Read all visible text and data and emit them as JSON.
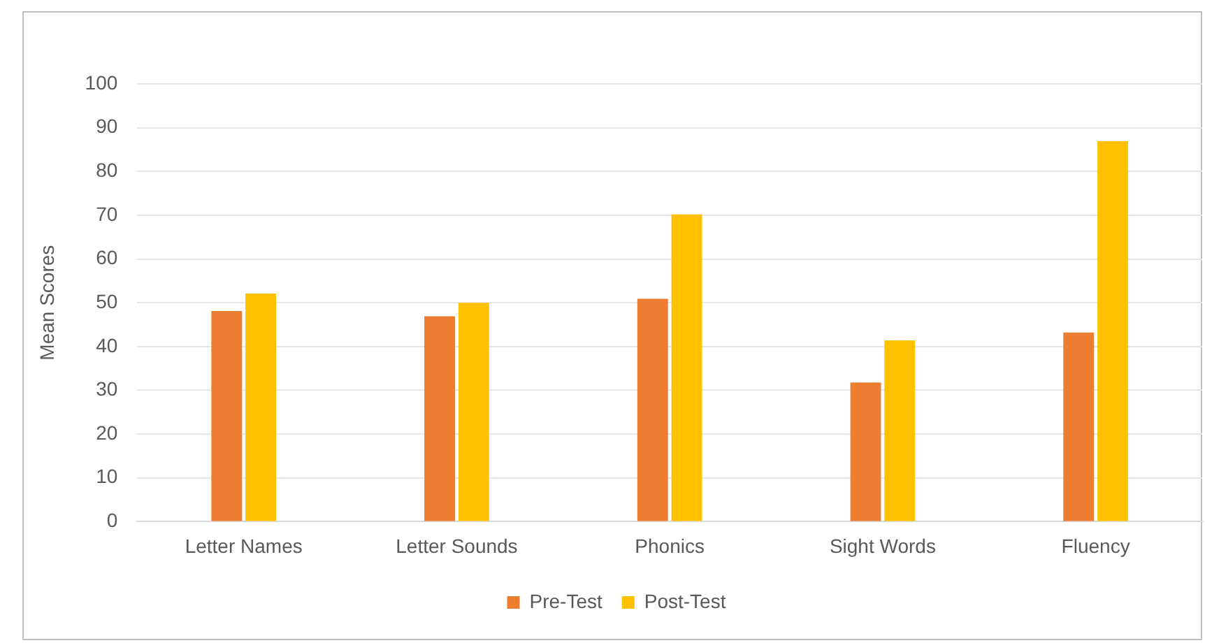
{
  "chart_data": {
    "type": "bar",
    "ylabel": "Mean Scores",
    "categories": [
      "Letter Names",
      "Letter Sounds",
      "Phonics",
      "Sight Words",
      "Fluency"
    ],
    "series": [
      {
        "name": "Pre-Test",
        "color": "#ed7d31",
        "values": [
          48.1,
          46.9,
          50.9,
          31.8,
          43.2
        ]
      },
      {
        "name": "Post-Test",
        "color": "#ffc000",
        "values": [
          52.1,
          50.0,
          70.2,
          41.4,
          86.9
        ]
      }
    ],
    "ylim": [
      0,
      100
    ],
    "yticks": [
      0,
      10,
      20,
      30,
      40,
      50,
      60,
      70,
      80,
      90,
      100
    ],
    "grid": "y",
    "legend": "bottom"
  }
}
